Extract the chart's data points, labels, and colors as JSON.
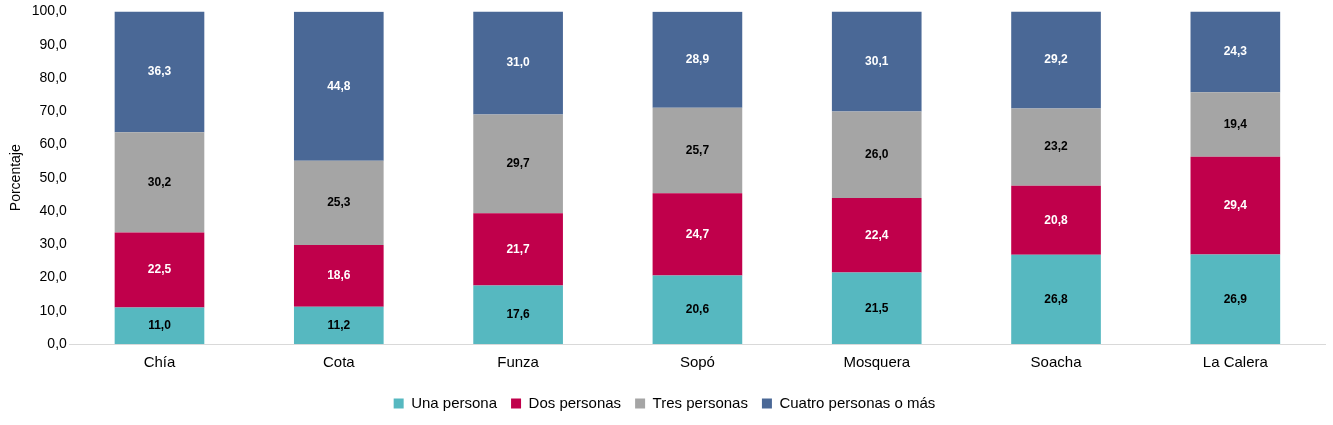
{
  "chart_data": {
    "type": "bar",
    "stacked": true,
    "ylabel": "Porcentaje",
    "categories": [
      "Chía",
      "Cota",
      "Funza",
      "Sopó",
      "Mosquera",
      "Soacha",
      "La Calera"
    ],
    "series": [
      {
        "name": "Una persona",
        "color": "#56b8c0",
        "values": [
          11.0,
          11.2,
          17.6,
          20.6,
          21.5,
          26.8,
          26.9
        ],
        "value_labels": [
          "11,0",
          "11,2",
          "17,6",
          "20,6",
          "21,5",
          "26,8",
          "26,9"
        ]
      },
      {
        "name": "Dos personas",
        "color": "#c0004b",
        "values": [
          22.5,
          18.6,
          21.7,
          24.7,
          22.4,
          20.8,
          29.4
        ],
        "value_labels": [
          "22,5",
          "18,6",
          "21,7",
          "24,7",
          "22,4",
          "20,8",
          "29,4"
        ]
      },
      {
        "name": "Tres personas",
        "color": "#a5a5a5",
        "values": [
          30.2,
          25.3,
          29.7,
          25.7,
          26.0,
          23.2,
          19.4
        ],
        "value_labels": [
          "30,2",
          "25,3",
          "29,7",
          "25,7",
          "26,0",
          "23,2",
          "19,4"
        ]
      },
      {
        "name": "Cuatro personas o más",
        "color": "#4a6896",
        "values": [
          36.3,
          44.8,
          31.0,
          28.9,
          30.1,
          29.2,
          24.3
        ],
        "value_labels": [
          "36,3",
          "44,8",
          "31,0",
          "28,9",
          "30,1",
          "29,2",
          "24,3"
        ]
      }
    ],
    "ylim": [
      0,
      100
    ],
    "yticks": [
      {
        "value": 0,
        "label": "0,0"
      },
      {
        "value": 10,
        "label": "10,0"
      },
      {
        "value": 20,
        "label": "20,0"
      },
      {
        "value": 30,
        "label": "30,0"
      },
      {
        "value": 40,
        "label": "40,0"
      },
      {
        "value": 50,
        "label": "50,0"
      },
      {
        "value": 60,
        "label": "60,0"
      },
      {
        "value": 70,
        "label": "70,0"
      },
      {
        "value": 80,
        "label": "80,0"
      },
      {
        "value": 90,
        "label": "90,0"
      },
      {
        "value": 100,
        "label": "100,0"
      }
    ],
    "grid": false,
    "legend": "bottom"
  }
}
